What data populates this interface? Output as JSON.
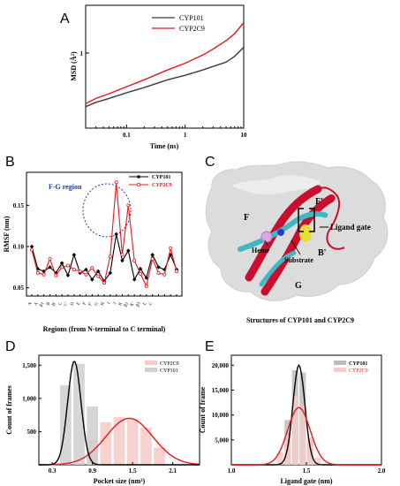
{
  "panels": {
    "A": "A",
    "B": "B",
    "C": "C",
    "D": "D",
    "E": "E"
  },
  "panelC": {
    "caption": "Structures of CYP101 and CYP2C9",
    "labels": {
      "F": "F",
      "F_prime": "F'",
      "G": "G",
      "B_prime": "B'",
      "heme": "Heme",
      "substrate": "Substrate",
      "ligand_gate": "Ligand gate"
    },
    "colors": {
      "surface": "#d9d9d9",
      "helix_red": "#c8102e",
      "helix_cyan": "#3fb8c4",
      "substrate": "#e8e030",
      "heme": "#d9a6e8",
      "substrate_blue": "#2a3cd0"
    }
  },
  "chart_data": [
    {
      "id": "A",
      "type": "line",
      "xlabel": "Time (ns)",
      "ylabel": "MSD (Å²)",
      "xscale": "log",
      "yscale": "log",
      "xlim": [
        0.02,
        10
      ],
      "ylim": [
        0.16,
        3.2
      ],
      "xticks": [
        0.1,
        1,
        10
      ],
      "xtick_labels": [
        "0.1",
        "1",
        "10"
      ],
      "yticks": [
        1
      ],
      "ytick_labels": [
        "1"
      ],
      "legend_position": "top-left",
      "series": [
        {
          "name": "CYP101",
          "color": "#3a3a3a",
          "x": [
            0.02,
            0.03,
            0.05,
            0.1,
            0.2,
            0.5,
            1,
            2,
            3,
            5,
            7,
            10
          ],
          "y": [
            0.27,
            0.3,
            0.33,
            0.38,
            0.43,
            0.52,
            0.58,
            0.66,
            0.72,
            0.8,
            0.92,
            1.15
          ]
        },
        {
          "name": "CYP2C9",
          "color": "#e8191e",
          "x": [
            0.02,
            0.03,
            0.05,
            0.1,
            0.2,
            0.5,
            1,
            2,
            3,
            5,
            7,
            10
          ],
          "y": [
            0.29,
            0.33,
            0.37,
            0.44,
            0.52,
            0.66,
            0.78,
            0.95,
            1.1,
            1.35,
            1.6,
            2.1
          ]
        }
      ]
    },
    {
      "id": "B",
      "type": "line",
      "xlabel": "Regions (from N-terminal to C terminal)",
      "ylabel": "RMSF (nm)",
      "ylim": [
        0.04,
        0.19
      ],
      "yticks": [
        0.05,
        0.1,
        0.15
      ],
      "ytick_labels": [
        "0.05",
        "0.10",
        "0.15"
      ],
      "categories": [
        "N",
        "A",
        "β1",
        "B",
        "B'",
        "C",
        "C'",
        "D",
        "E",
        "F",
        "F'",
        "G",
        "H",
        "I",
        "J",
        "K",
        "β2",
        "K'",
        "β3",
        "L",
        "C",
        "",
        "",
        "",
        ""
      ],
      "annotation": "F-G region",
      "legend_position": "top-right",
      "series": [
        {
          "name": "CYP101",
          "color": "#000000",
          "values": [
            0.1,
            0.073,
            0.07,
            0.075,
            0.068,
            0.08,
            0.065,
            0.09,
            0.068,
            0.072,
            0.06,
            0.07,
            0.058,
            0.068,
            0.115,
            0.083,
            0.095,
            0.06,
            0.073,
            0.062,
            0.09,
            0.075,
            0.072,
            0.09,
            0.072
          ]
        },
        {
          "name": "CYP2C9",
          "color": "#e8191e",
          "values": [
            0.096,
            0.068,
            0.066,
            0.085,
            0.065,
            0.075,
            0.077,
            0.072,
            0.07,
            0.066,
            0.074,
            0.064,
            0.056,
            0.088,
            0.178,
            0.09,
            0.15,
            0.083,
            0.067,
            0.052,
            0.085,
            0.068,
            0.066,
            0.098,
            0.07
          ]
        }
      ]
    },
    {
      "id": "D",
      "type": "bar",
      "xlabel": "Pocket size (nm³)",
      "ylabel": "Count of frames",
      "xlim": [
        0.1,
        2.5
      ],
      "ylim": [
        0,
        1650
      ],
      "xticks": [
        0.3,
        0.9,
        1.5,
        2.1
      ],
      "xtick_labels": [
        "0.3",
        "0.9",
        "1.5",
        "2.1"
      ],
      "yticks": [
        500,
        1000,
        1500
      ],
      "ytick_labels": [
        "500",
        "1,000",
        "1,500"
      ],
      "legend_position": "top-right",
      "series": [
        {
          "name": "CYP2C9",
          "color": "#e8191e",
          "bar_color": "#f7c9c9",
          "bins": [
            0.9,
            1.1,
            1.3,
            1.5,
            1.7,
            1.9
          ],
          "bin_width": 0.2,
          "counts": [
            380,
            640,
            720,
            690,
            560,
            260
          ],
          "fit_mean": 1.45,
          "fit_sd": 0.35,
          "fit_peak": 700
        },
        {
          "name": "CYP101",
          "color": "#000000",
          "bar_color": "#cfcfcf",
          "bins": [
            0.5,
            0.7,
            0.9
          ],
          "bin_width": 0.2,
          "counts": [
            1200,
            1520,
            880
          ],
          "fit_mean": 0.63,
          "fit_sd": 0.1,
          "fit_peak": 1560
        }
      ]
    },
    {
      "id": "E",
      "type": "bar",
      "xlabel": "Ligand gate (nm)",
      "ylabel": "Count of frame",
      "xlim": [
        1.0,
        2.0
      ],
      "ylim": [
        0,
        22000
      ],
      "xticks": [
        1.0,
        1.5,
        2.0
      ],
      "xtick_labels": [
        "1.0",
        "1.5",
        "2.0"
      ],
      "yticks": [
        5000,
        10000,
        15000,
        20000
      ],
      "ytick_labels": [
        "5,000",
        "10,000",
        "15,000",
        "20,000"
      ],
      "legend_position": "top-right",
      "series": [
        {
          "name": "CYP101",
          "color": "#000000",
          "bar_color": "#bdbdbd",
          "bins": [
            1.375,
            1.425,
            1.475,
            1.525
          ],
          "bin_width": 0.05,
          "counts": [
            9000,
            19000,
            18500,
            5000
          ],
          "fit_mean": 1.45,
          "fit_sd": 0.04,
          "fit_peak": 20000
        },
        {
          "name": "CYP2C9",
          "color": "#e8191e",
          "bar_color": "#f7c9c9",
          "bins": [
            1.325,
            1.375,
            1.425,
            1.475,
            1.525,
            1.575
          ],
          "bin_width": 0.05,
          "counts": [
            2500,
            6000,
            14000,
            12000,
            5500,
            1500
          ],
          "fit_mean": 1.45,
          "fit_sd": 0.075,
          "fit_peak": 11500
        }
      ]
    }
  ]
}
